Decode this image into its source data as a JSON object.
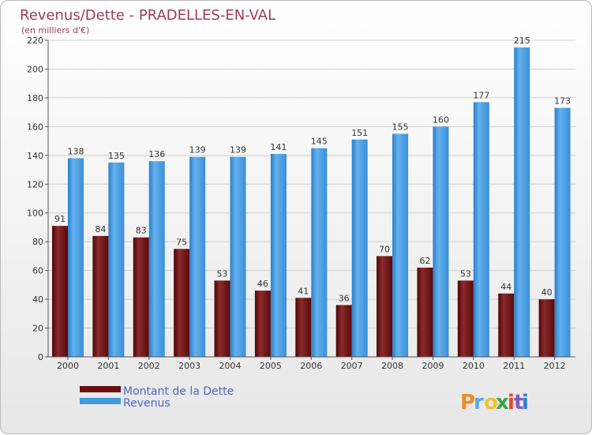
{
  "chart_data": {
    "type": "bar",
    "title": "Revenus/Dette - PRADELLES-EN-VAL",
    "subtitle": "(en milliers d'€)",
    "categories": [
      "2000",
      "2001",
      "2002",
      "2003",
      "2004",
      "2005",
      "2006",
      "2007",
      "2008",
      "2009",
      "2010",
      "2011",
      "2012"
    ],
    "series": [
      {
        "name": "Montant de la Dette",
        "color": "#6b0f10",
        "values": [
          91,
          84,
          83,
          75,
          53,
          46,
          41,
          36,
          70,
          62,
          53,
          44,
          40
        ]
      },
      {
        "name": "Revenus",
        "color": "#3f9ae0",
        "values": [
          138,
          135,
          136,
          139,
          139,
          141,
          145,
          151,
          155,
          160,
          177,
          215,
          173
        ]
      }
    ],
    "yticks": [
      0,
      20,
      40,
      60,
      80,
      100,
      120,
      140,
      160,
      180,
      200,
      220
    ],
    "ylim": [
      0,
      220
    ],
    "grid": true,
    "legend": "bottom-left"
  },
  "brand": {
    "text": "Proxiti",
    "colors": [
      "#f28b22",
      "#5aa9e6",
      "#f2c12e",
      "#3aa64a",
      "#e8442c",
      "#7a5bc4",
      "#2d7fd0"
    ]
  }
}
